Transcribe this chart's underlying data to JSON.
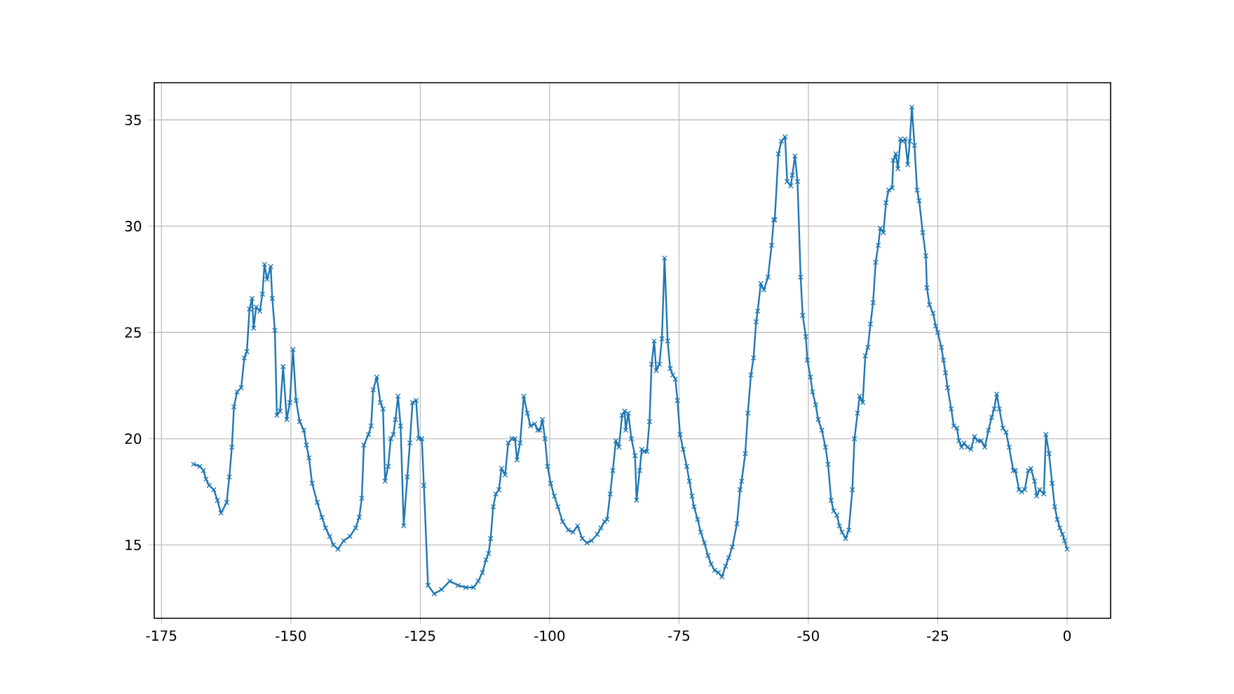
{
  "chart_data": {
    "type": "line",
    "x": [
      -168.8,
      -167.6,
      -166.9,
      -166.4,
      -165.8,
      -164.9,
      -164.2,
      -163.5,
      -162.4,
      -161.9,
      -161.4,
      -161.0,
      -160.4,
      -159.6,
      -159.0,
      -158.5,
      -158.0,
      -157.5,
      -157.2,
      -156.7,
      -156.0,
      -155.5,
      -155.1,
      -154.6,
      -153.9,
      -153.6,
      -153.1,
      -152.7,
      -152.1,
      -151.5,
      -150.8,
      -150.2,
      -149.6,
      -149.0,
      -148.3,
      -147.5,
      -147.0,
      -146.5,
      -145.9,
      -144.9,
      -144.0,
      -143.3,
      -142.5,
      -141.8,
      -140.9,
      -139.8,
      -138.6,
      -137.5,
      -136.8,
      -136.3,
      -135.9,
      -135.0,
      -134.5,
      -134.1,
      -133.4,
      -132.7,
      -132.2,
      -131.8,
      -131.2,
      -130.7,
      -130.2,
      -129.8,
      -129.3,
      -128.8,
      -128.2,
      -127.5,
      -127.0,
      -126.5,
      -125.8,
      -125.3,
      -124.7,
      -124.3,
      -123.5,
      -122.3,
      -120.9,
      -119.3,
      -117.7,
      -116.2,
      -114.7,
      -113.8,
      -113.0,
      -112.3,
      -111.8,
      -111.4,
      -110.9,
      -110.4,
      -109.8,
      -109.3,
      -108.6,
      -108.0,
      -107.3,
      -106.7,
      -106.3,
      -105.7,
      -105.0,
      -104.3,
      -103.7,
      -102.9,
      -102.3,
      -101.9,
      -101.4,
      -100.9,
      -100.4,
      -99.8,
      -99.1,
      -98.4,
      -97.5,
      -96.4,
      -95.5,
      -94.6,
      -93.7,
      -92.8,
      -91.9,
      -90.8,
      -90.1,
      -89.4,
      -88.9,
      -88.3,
      -87.8,
      -87.2,
      -86.6,
      -86.0,
      -85.5,
      -85.3,
      -84.8,
      -84.2,
      -83.5,
      -83.2,
      -82.6,
      -82.2,
      -81.7,
      -81.2,
      -80.7,
      -80.3,
      -79.8,
      -79.4,
      -78.8,
      -78.3,
      -77.8,
      -77.2,
      -76.7,
      -76.2,
      -75.7,
      -75.3,
      -74.8,
      -74.2,
      -73.5,
      -73.0,
      -72.5,
      -72.1,
      -71.4,
      -70.8,
      -70.1,
      -69.4,
      -68.8,
      -68.1,
      -67.4,
      -66.7,
      -66.0,
      -65.4,
      -64.7,
      -63.8,
      -63.2,
      -62.9,
      -62.2,
      -61.7,
      -61.1,
      -60.6,
      -60.1,
      -59.8,
      -59.2,
      -58.6,
      -57.8,
      -57.1,
      -56.7,
      -56.5,
      -55.8,
      -55.2,
      -54.5,
      -54.1,
      -53.4,
      -53.1,
      -52.6,
      -52.1,
      -51.5,
      -51.1,
      -50.5,
      -50.2,
      -49.6,
      -49.2,
      -48.6,
      -48.1,
      -47.4,
      -46.7,
      -46.2,
      -45.6,
      -45.1,
      -44.5,
      -44.0,
      -43.5,
      -42.8,
      -42.2,
      -41.5,
      -41.1,
      -40.5,
      -40.1,
      -39.5,
      -39.0,
      -38.5,
      -38.0,
      -37.5,
      -37.0,
      -36.5,
      -36.1,
      -35.5,
      -35.0,
      -34.5,
      -33.8,
      -33.6,
      -33.1,
      -32.7,
      -32.2,
      -31.8,
      -31.3,
      -30.8,
      -30.4,
      -30.0,
      -29.5,
      -29.0,
      -28.6,
      -27.9,
      -27.3,
      -27.1,
      -26.6,
      -25.9,
      -25.4,
      -25.0,
      -24.3,
      -23.9,
      -23.5,
      -23.1,
      -22.4,
      -21.9,
      -21.3,
      -20.9,
      -20.4,
      -19.9,
      -19.3,
      -18.6,
      -17.9,
      -17.3,
      -16.6,
      -15.9,
      -15.2,
      -14.6,
      -14.1,
      -13.6,
      -13.1,
      -12.4,
      -11.8,
      -11.2,
      -10.4,
      -10.0,
      -9.3,
      -8.8,
      -8.2,
      -7.5,
      -7.0,
      -6.3,
      -5.9,
      -5.3,
      -4.5,
      -4.1,
      -3.5,
      -2.9,
      -2.4,
      -1.9,
      -1.4,
      -0.9,
      -0.5,
      0.0
    ],
    "series": [
      {
        "color": "#1f77b4",
        "values": [
          18.8,
          18.7,
          18.5,
          18.1,
          17.8,
          17.6,
          17.1,
          16.5,
          17.0,
          18.2,
          19.6,
          21.5,
          22.2,
          22.4,
          23.8,
          24.1,
          26.1,
          26.6,
          25.2,
          26.2,
          26.0,
          26.8,
          28.2,
          27.5,
          28.1,
          26.6,
          25.1,
          21.1,
          21.3,
          23.4,
          20.9,
          21.7,
          24.2,
          21.8,
          20.8,
          20.4,
          19.7,
          19.1,
          17.9,
          17.0,
          16.3,
          15.8,
          15.4,
          15.0,
          14.8,
          15.2,
          15.4,
          15.8,
          16.3,
          17.2,
          19.7,
          20.2,
          20.6,
          22.3,
          22.9,
          21.7,
          21.4,
          18.0,
          18.7,
          20.0,
          20.2,
          20.9,
          22.0,
          20.6,
          15.9,
          18.2,
          19.8,
          21.7,
          21.8,
          20.0,
          20.0,
          17.8,
          13.1,
          12.7,
          12.9,
          13.3,
          13.1,
          13.0,
          13.0,
          13.3,
          13.7,
          14.3,
          14.6,
          15.3,
          16.8,
          17.4,
          17.6,
          18.6,
          18.3,
          19.8,
          20.0,
          20.0,
          19.0,
          19.8,
          22.0,
          21.2,
          20.6,
          20.7,
          20.4,
          20.4,
          20.9,
          20.0,
          18.7,
          17.9,
          17.3,
          16.8,
          16.1,
          15.7,
          15.6,
          15.9,
          15.3,
          15.1,
          15.2,
          15.5,
          15.8,
          16.1,
          16.2,
          17.4,
          18.5,
          19.9,
          19.6,
          21.1,
          21.3,
          20.4,
          21.2,
          20.0,
          19.2,
          17.1,
          18.5,
          19.5,
          19.4,
          19.4,
          20.8,
          23.5,
          24.6,
          23.2,
          23.5,
          24.7,
          28.5,
          24.6,
          23.3,
          23.0,
          22.8,
          21.8,
          20.2,
          19.5,
          18.7,
          18.0,
          17.3,
          16.8,
          16.2,
          15.6,
          15.1,
          14.5,
          14.1,
          13.8,
          13.7,
          13.5,
          14.0,
          14.4,
          14.9,
          16.0,
          17.6,
          18.0,
          19.3,
          21.2,
          23.0,
          23.8,
          25.5,
          26.0,
          27.3,
          27.0,
          27.6,
          29.1,
          30.3,
          30.3,
          33.4,
          34.0,
          34.2,
          32.1,
          31.9,
          32.4,
          33.3,
          32.1,
          27.6,
          25.8,
          24.8,
          23.7,
          22.9,
          22.2,
          21.6,
          20.9,
          20.4,
          19.6,
          18.8,
          17.1,
          16.6,
          16.4,
          15.9,
          15.6,
          15.3,
          15.7,
          17.6,
          20.0,
          21.2,
          22.0,
          21.7,
          23.9,
          24.3,
          25.4,
          26.4,
          28.3,
          29.1,
          29.9,
          29.7,
          31.1,
          31.7,
          31.8,
          33.1,
          33.4,
          32.7,
          34.1,
          34.0,
          34.1,
          32.9,
          34.0,
          35.6,
          33.8,
          31.7,
          31.2,
          29.7,
          28.6,
          27.1,
          26.3,
          25.9,
          25.3,
          25.0,
          24.3,
          23.7,
          23.1,
          22.4,
          21.4,
          20.6,
          20.5,
          19.9,
          19.6,
          19.8,
          19.6,
          19.5,
          20.1,
          19.9,
          19.9,
          19.6,
          20.4,
          21.0,
          21.4,
          22.1,
          21.4,
          20.5,
          20.3,
          19.6,
          18.5,
          18.5,
          17.6,
          17.5,
          17.6,
          18.5,
          18.6,
          18.0,
          17.3,
          17.6,
          17.4,
          20.2,
          19.3,
          17.9,
          16.8,
          16.2,
          15.8,
          15.5,
          15.2,
          14.8
        ]
      }
    ],
    "xlim": [
      -176.4,
      8.4
    ],
    "ylim": [
      11.55,
      36.75
    ],
    "xticks": [
      -175,
      -150,
      -125,
      -100,
      -75,
      -50,
      -25,
      0
    ],
    "yticks": [
      15,
      20,
      25,
      30,
      35
    ],
    "grid": true,
    "marker": "cross",
    "line_style": "solid"
  }
}
